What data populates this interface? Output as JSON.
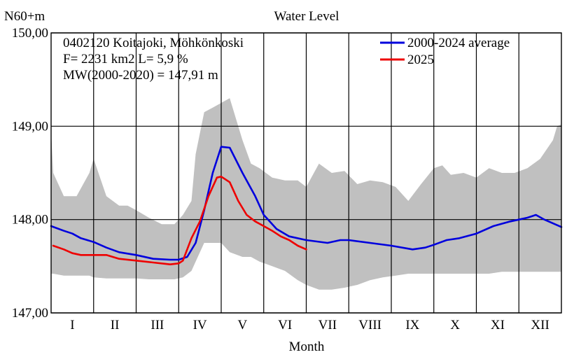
{
  "chart_data": {
    "type": "line",
    "title": "Water Level",
    "ylabel": "N60+m",
    "xlabel": "Month",
    "ylim": [
      147.0,
      150.0
    ],
    "yticks": [
      147.0,
      148.0,
      149.0,
      150.0
    ],
    "ytick_labels": [
      "147,00",
      "148,00",
      "149,00",
      "150,00"
    ],
    "xlim": [
      0,
      12
    ],
    "categories": [
      "I",
      "II",
      "III",
      "IV",
      "V",
      "VI",
      "VII",
      "VIII",
      "IX",
      "X",
      "XI",
      "XII"
    ],
    "grid": true,
    "legend_position": "top-right",
    "annotations": [
      "0402120 Koitajoki, Möhkönkoski",
      "F=   2231 km2 L=  5,9 %",
      "MW(2000-2020) = 147,91 m"
    ],
    "colors": {
      "average": "#0000dd",
      "current": "#ee0000",
      "range": "#c0c0c0",
      "grid": "#000000"
    },
    "range_band": {
      "name": "min-max range",
      "x": [
        0,
        0.05,
        0.3,
        0.6,
        0.9,
        1.0,
        1.3,
        1.6,
        1.8,
        2.0,
        2.3,
        2.6,
        2.9,
        3.1,
        3.3,
        3.4,
        3.6,
        3.8,
        4.0,
        4.2,
        4.5,
        4.7,
        4.9,
        5.2,
        5.5,
        5.8,
        6.0,
        6.3,
        6.6,
        6.9,
        7.2,
        7.5,
        7.8,
        8.1,
        8.4,
        8.7,
        9.0,
        9.2,
        9.4,
        9.7,
        10.0,
        10.3,
        10.6,
        10.9,
        11.2,
        11.5,
        11.8,
        11.9,
        12.0
      ],
      "upper": [
        148.95,
        148.5,
        148.25,
        148.25,
        148.5,
        148.65,
        148.25,
        148.15,
        148.15,
        148.1,
        148.02,
        147.95,
        147.95,
        148.05,
        148.2,
        148.7,
        149.15,
        149.2,
        149.25,
        149.3,
        148.85,
        148.6,
        148.55,
        148.45,
        148.42,
        148.42,
        148.35,
        148.6,
        148.5,
        148.52,
        148.38,
        148.42,
        148.4,
        148.35,
        148.2,
        148.38,
        148.55,
        148.58,
        148.48,
        148.5,
        148.45,
        148.55,
        148.5,
        148.5,
        148.55,
        148.65,
        148.85,
        149.0,
        149.02
      ],
      "lower": [
        147.42,
        147.42,
        147.4,
        147.4,
        147.4,
        147.38,
        147.37,
        147.37,
        147.37,
        147.37,
        147.36,
        147.36,
        147.36,
        147.38,
        147.45,
        147.55,
        147.75,
        147.75,
        147.75,
        147.65,
        147.6,
        147.6,
        147.55,
        147.5,
        147.45,
        147.35,
        147.3,
        147.25,
        147.25,
        147.27,
        147.3,
        147.35,
        147.38,
        147.4,
        147.42,
        147.42,
        147.42,
        147.42,
        147.42,
        147.42,
        147.42,
        147.42,
        147.44,
        147.44,
        147.44,
        147.44,
        147.44,
        147.44,
        147.44
      ]
    },
    "series": [
      {
        "name": "2000-2024 average",
        "x": [
          0,
          0.3,
          0.5,
          0.7,
          1.0,
          1.3,
          1.6,
          2.0,
          2.4,
          2.8,
          3.0,
          3.2,
          3.4,
          3.6,
          3.8,
          4.0,
          4.2,
          4.5,
          4.8,
          5.0,
          5.3,
          5.6,
          6.0,
          6.5,
          6.8,
          7.0,
          7.5,
          8.0,
          8.5,
          8.8,
          9.0,
          9.3,
          9.6,
          10.0,
          10.4,
          10.8,
          11.0,
          11.2,
          11.4,
          11.6,
          12.0
        ],
        "values": [
          147.93,
          147.88,
          147.85,
          147.8,
          147.76,
          147.7,
          147.65,
          147.62,
          147.58,
          147.57,
          147.57,
          147.6,
          147.75,
          148.1,
          148.5,
          148.78,
          148.77,
          148.5,
          148.25,
          148.05,
          147.9,
          147.82,
          147.78,
          147.75,
          147.78,
          147.78,
          147.75,
          147.72,
          147.68,
          147.7,
          147.73,
          147.78,
          147.8,
          147.85,
          147.93,
          147.98,
          148.0,
          148.02,
          148.05,
          148.0,
          147.92
        ]
      },
      {
        "name": "2025",
        "x": [
          0.05,
          0.3,
          0.5,
          0.7,
          1.0,
          1.3,
          1.6,
          2.0,
          2.4,
          2.8,
          3.0,
          3.1,
          3.3,
          3.5,
          3.7,
          3.9,
          4.0,
          4.2,
          4.4,
          4.6,
          4.8,
          5.0,
          5.2,
          5.4,
          5.6,
          5.8,
          6.0
        ],
        "values": [
          147.72,
          147.68,
          147.64,
          147.62,
          147.62,
          147.62,
          147.58,
          147.56,
          147.54,
          147.52,
          147.53,
          147.56,
          147.8,
          147.98,
          148.25,
          148.45,
          148.46,
          148.4,
          148.2,
          148.05,
          147.98,
          147.93,
          147.88,
          147.82,
          147.78,
          147.72,
          147.68
        ]
      }
    ]
  }
}
